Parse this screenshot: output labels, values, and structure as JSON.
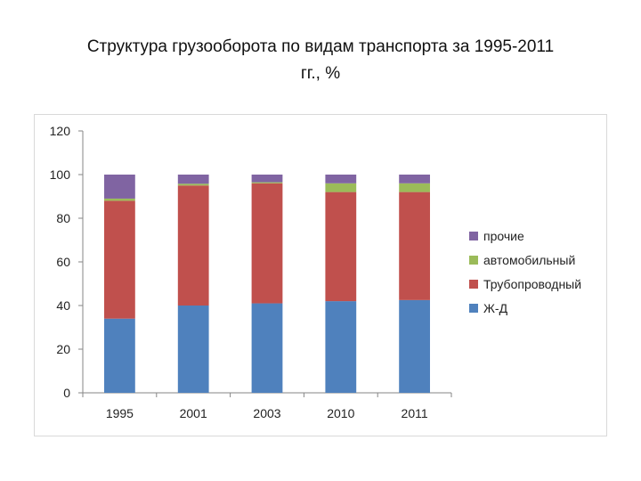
{
  "title": {
    "line1": "Структура грузооборота по видам транспорта за 1995-2011",
    "line2": "гг., %"
  },
  "chart_data": {
    "type": "bar",
    "stacked": true,
    "title": "Структура грузооборота по видам транспорта за 1995-2011 гг., %",
    "categories": [
      "1995",
      "2001",
      "2003",
      "2010",
      "2011"
    ],
    "series": [
      {
        "name": "Ж-Д",
        "color": "#4f81bd",
        "values": [
          34,
          40,
          41,
          42,
          42.5
        ]
      },
      {
        "name": "Трубопроводный",
        "color": "#c0504d",
        "values": [
          54,
          55,
          55,
          50,
          49.5
        ]
      },
      {
        "name": "автомобильный",
        "color": "#9bbb59",
        "values": [
          1,
          0.8,
          0.5,
          4,
          4
        ]
      },
      {
        "name": "прочие",
        "color": "#8064a2",
        "values": [
          11,
          4.2,
          3.5,
          4,
          4
        ]
      }
    ],
    "ylim": [
      0,
      120
    ],
    "yticks": [
      0,
      20,
      40,
      60,
      80,
      100,
      120
    ],
    "xlabel": "",
    "ylabel": "",
    "grid": false,
    "legend_position": "right",
    "legend_order": [
      "прочие",
      "автомобильный",
      "Трубопроводный",
      "Ж-Д"
    ]
  }
}
